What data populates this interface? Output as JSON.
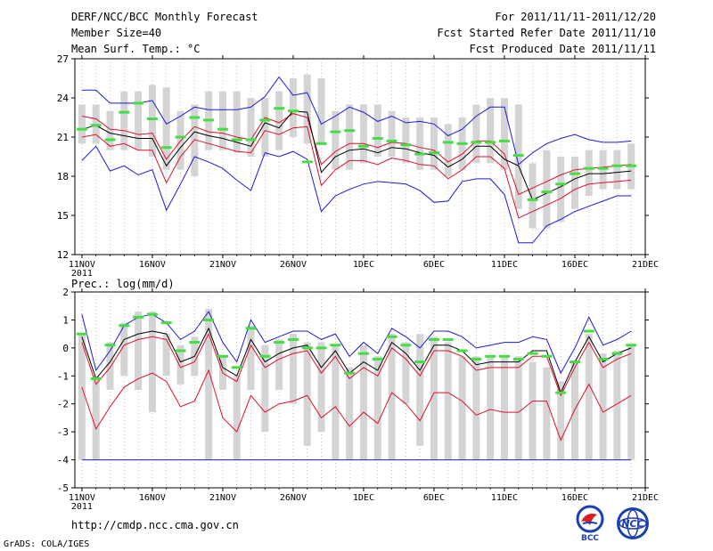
{
  "header": {
    "title": "DERF/NCC/BCC Monthly Forecast",
    "member_size": "Member Size=40",
    "variable": "Mean Surf. Temp.: °C",
    "period": "For 2011/11/11-2011/12/20",
    "started": "Fcst Started Refer Date 2011/11/10",
    "produced": "Fcst Produced Date 2011/11/11"
  },
  "footer": {
    "url": "http://cmdp.ncc.cma.gov.cn",
    "credit": "GrADS: COLA/IGES",
    "logo_left": "BCC",
    "logo_right": "NCC"
  },
  "colors": {
    "mean": "#000000",
    "red": "#e0102a",
    "blue": "#1a1adc",
    "green": "#44dd44",
    "bar": "#d4d4d4"
  },
  "chart_data": [
    {
      "type": "line",
      "title": "Mean Surf. Temp.: °C",
      "ylim": [
        12,
        27
      ],
      "yticks": [
        12,
        15,
        18,
        21,
        24,
        27
      ],
      "xticks": [
        {
          "day": 1,
          "label": "11NOV",
          "sub": "2011"
        },
        {
          "day": 6,
          "label": "16NOV"
        },
        {
          "day": 11,
          "label": "21NOV"
        },
        {
          "day": 16,
          "label": "26NOV"
        },
        {
          "day": 21,
          "label": "1DEC"
        },
        {
          "day": 26,
          "label": "6DEC"
        },
        {
          "day": 31,
          "label": "11DEC"
        },
        {
          "day": 36,
          "label": "16DEC"
        },
        {
          "day": 41,
          "label": "21DEC"
        }
      ],
      "x": [
        1,
        2,
        3,
        4,
        5,
        6,
        7,
        8,
        9,
        10,
        11,
        12,
        13,
        14,
        15,
        16,
        17,
        18,
        19,
        20,
        21,
        22,
        23,
        24,
        25,
        26,
        27,
        28,
        29,
        30,
        31,
        32,
        33,
        34,
        35,
        36,
        37,
        38,
        39,
        40
      ],
      "bars": {
        "low": [
          20.5,
          20.5,
          20.0,
          20.0,
          20.0,
          19.5,
          18.5,
          18.5,
          18.0,
          20.0,
          20.0,
          19.8,
          19.5,
          19.5,
          20.0,
          21.0,
          20.5,
          20.5,
          18.5,
          18.5,
          19.0,
          19.5,
          19.5,
          19.0,
          18.5,
          18.5,
          18.0,
          18.5,
          19.0,
          19.0,
          18.5,
          15.5,
          14.0,
          14.0,
          14.5,
          15.5,
          16.5,
          17.0,
          17.0,
          17.0
        ],
        "high": [
          23.5,
          23.5,
          23.0,
          24.5,
          24.5,
          25.0,
          24.8,
          23.0,
          23.5,
          24.5,
          24.5,
          24.5,
          24.0,
          24.0,
          24.5,
          25.5,
          25.8,
          25.5,
          23.0,
          23.5,
          23.5,
          23.5,
          23.0,
          22.5,
          22.5,
          22.5,
          22.0,
          22.5,
          23.5,
          24.0,
          24.0,
          23.5,
          19.0,
          20.0,
          19.5,
          19.5,
          20.0,
          20.0,
          20.0,
          20.5
        ]
      },
      "series": [
        {
          "name": "ensemble mean",
          "color": "#000000",
          "values": [
            21.6,
            21.9,
            21.3,
            21.1,
            20.9,
            20.9,
            18.8,
            20.2,
            21.4,
            21.1,
            20.9,
            20.6,
            20.3,
            22.1,
            21.7,
            23.0,
            22.9,
            18.3,
            19.5,
            20.0,
            20.1,
            19.8,
            20.2,
            20.1,
            19.8,
            19.6,
            18.7,
            19.3,
            20.3,
            20.3,
            19.3,
            18.8,
            16.2,
            16.7,
            17.2,
            17.8,
            18.2,
            18.2,
            18.3,
            18.4
          ]
        },
        {
          "name": "upper red",
          "color": "#e0102a",
          "values": [
            22.6,
            22.4,
            21.6,
            21.5,
            21.2,
            21.3,
            19.3,
            20.7,
            21.8,
            21.4,
            21.3,
            21.0,
            20.8,
            22.5,
            22.1,
            22.8,
            22.5,
            18.9,
            19.9,
            20.5,
            20.5,
            20.2,
            20.6,
            20.5,
            20.2,
            20.0,
            19.1,
            19.7,
            20.7,
            20.7,
            19.7,
            16.6,
            17.1,
            17.6,
            18.1,
            18.5,
            18.6,
            18.7,
            18.8,
            18.9
          ]
        },
        {
          "name": "lower red",
          "color": "#e0102a",
          "values": [
            21.0,
            21.2,
            20.3,
            20.5,
            20.0,
            20.0,
            17.5,
            19.5,
            20.8,
            20.5,
            20.2,
            19.9,
            19.8,
            21.5,
            21.2,
            21.7,
            21.8,
            17.3,
            18.5,
            19.2,
            19.2,
            18.9,
            19.4,
            19.2,
            18.9,
            18.8,
            17.8,
            18.5,
            19.5,
            19.5,
            18.6,
            14.8,
            15.3,
            15.8,
            16.3,
            17.0,
            17.4,
            17.5,
            17.6,
            17.7
          ]
        },
        {
          "name": "upper blue",
          "color": "#1a1adc",
          "values": [
            24.6,
            24.6,
            23.6,
            23.6,
            23.6,
            23.8,
            22.0,
            22.6,
            23.3,
            23.1,
            23.1,
            23.1,
            23.3,
            24.1,
            25.6,
            24.2,
            24.4,
            22.0,
            22.6,
            23.3,
            22.9,
            22.2,
            22.6,
            22.1,
            22.2,
            22.0,
            21.1,
            21.6,
            22.6,
            23.3,
            23.3,
            18.9,
            19.8,
            20.5,
            20.9,
            21.2,
            20.8,
            20.6,
            20.6,
            20.7
          ]
        },
        {
          "name": "lower blue",
          "color": "#1a1adc",
          "values": [
            19.2,
            20.3,
            18.4,
            18.8,
            18.1,
            18.5,
            15.4,
            17.4,
            19.5,
            19.1,
            18.6,
            17.7,
            16.9,
            19.8,
            19.5,
            19.9,
            19.3,
            15.3,
            16.5,
            17.0,
            17.4,
            17.6,
            17.5,
            17.4,
            16.9,
            16.0,
            16.1,
            17.6,
            17.8,
            17.8,
            16.6,
            12.9,
            12.9,
            14.2,
            14.7,
            15.3,
            15.7,
            16.1,
            16.5,
            16.5
          ]
        }
      ],
      "markers": {
        "name": "green",
        "values": [
          21.6,
          21.9,
          20.8,
          22.9,
          23.6,
          22.4,
          20.2,
          21.0,
          22.5,
          22.3,
          21.6,
          20.8,
          20.8,
          22.3,
          23.2,
          23.0,
          19.1,
          20.5,
          21.4,
          21.5,
          20.3,
          20.9,
          20.7,
          20.4,
          19.7,
          19.8,
          20.6,
          20.5,
          20.6,
          20.6,
          20.7,
          19.6,
          16.2,
          16.8,
          17.4,
          18.2,
          18.6,
          18.6,
          18.8,
          18.8
        ]
      }
    },
    {
      "type": "line",
      "title": "Prec.: log(mm/d)",
      "ylim": [
        -5,
        2
      ],
      "yticks": [
        -5,
        -4,
        -3,
        -2,
        -1,
        0,
        1,
        2
      ],
      "xticks": [
        {
          "day": 1,
          "label": "11NOV",
          "sub": "2011"
        },
        {
          "day": 6,
          "label": "16NOV"
        },
        {
          "day": 11,
          "label": "21NOV"
        },
        {
          "day": 16,
          "label": "26NOV"
        },
        {
          "day": 21,
          "label": "1DEC"
        },
        {
          "day": 26,
          "label": "6DEC"
        },
        {
          "day": 31,
          "label": "11DEC"
        },
        {
          "day": 36,
          "label": "16DEC"
        },
        {
          "day": 41,
          "label": "21DEC"
        }
      ],
      "x": [
        1,
        2,
        3,
        4,
        5,
        6,
        7,
        8,
        9,
        10,
        11,
        12,
        13,
        14,
        15,
        16,
        17,
        18,
        19,
        20,
        21,
        22,
        23,
        24,
        25,
        26,
        27,
        28,
        29,
        30,
        31,
        32,
        33,
        34,
        35,
        36,
        37,
        38,
        39,
        40
      ],
      "bars": {
        "low": [
          -4.0,
          -4.0,
          -1.5,
          -1.0,
          -1.5,
          -2.3,
          -1.0,
          -1.3,
          -1.0,
          -4.0,
          -1.5,
          -4.0,
          -1.5,
          -3.0,
          -1.5,
          -2.0,
          -3.5,
          -3.0,
          -4.0,
          -4.0,
          -4.0,
          -4.0,
          -4.0,
          -2.0,
          -3.5,
          -4.0,
          -4.0,
          -4.0,
          -4.0,
          -4.0,
          -4.0,
          -4.0,
          -4.0,
          -4.0,
          -4.0,
          -4.0,
          -4.0,
          -4.0,
          -4.0,
          -4.0
        ],
        "high": [
          0.5,
          -1.0,
          0.2,
          0.9,
          1.3,
          1.3,
          0.5,
          0.1,
          0.4,
          1.4,
          -0.3,
          -1.0,
          0.8,
          0.1,
          0.3,
          0.5,
          0.2,
          0.2,
          0.1,
          -0.7,
          0.1,
          -0.3,
          0.5,
          0.2,
          0.5,
          0.4,
          0.2,
          -0.3,
          -0.3,
          -0.3,
          -0.3,
          -0.3,
          -0.5,
          -0.7,
          -1.2,
          -0.5,
          0.5,
          -0.2,
          -0.1,
          0.1
        ]
      },
      "series": [
        {
          "name": "ensemble mean",
          "color": "#000000",
          "values": [
            0.4,
            -1.1,
            -0.5,
            0.3,
            0.5,
            0.6,
            0.5,
            -0.5,
            -0.3,
            0.7,
            -0.7,
            -1.0,
            0.3,
            -0.5,
            -0.2,
            0.0,
            0.1,
            -0.7,
            -0.1,
            -0.9,
            -0.5,
            -0.8,
            0.2,
            -0.2,
            -0.8,
            0.1,
            0.1,
            -0.1,
            -0.6,
            -0.5,
            -0.5,
            -0.5,
            -0.1,
            -0.1,
            -1.6,
            -0.5,
            0.4,
            -0.5,
            -0.2,
            0.0
          ]
        },
        {
          "name": "upper red",
          "color": "#e0102a",
          "values": [
            0.2,
            -1.3,
            -0.7,
            0.1,
            0.3,
            0.4,
            0.3,
            -0.7,
            -0.5,
            0.5,
            -0.9,
            -1.2,
            0.1,
            -0.7,
            -0.4,
            -0.2,
            -0.1,
            -0.9,
            -0.3,
            -1.1,
            -0.7,
            -1.0,
            0.0,
            -0.4,
            -1.0,
            -0.1,
            -0.1,
            -0.3,
            -0.8,
            -0.7,
            -0.7,
            -0.7,
            -0.3,
            -0.3,
            -1.7,
            -0.7,
            0.2,
            -0.7,
            -0.4,
            -0.2
          ]
        },
        {
          "name": "lower red",
          "color": "#e0102a",
          "values": [
            -1.4,
            -2.9,
            -2.1,
            -1.4,
            -1.1,
            -0.9,
            -1.2,
            -2.1,
            -1.9,
            -0.8,
            -2.5,
            -3.0,
            -1.7,
            -2.3,
            -2.0,
            -1.9,
            -1.7,
            -2.5,
            -2.1,
            -2.8,
            -2.3,
            -2.7,
            -1.6,
            -2.0,
            -2.6,
            -1.6,
            -1.6,
            -1.9,
            -2.4,
            -2.2,
            -2.3,
            -2.3,
            -1.9,
            -1.9,
            -3.3,
            -2.2,
            -1.3,
            -2.3,
            -2.0,
            -1.7
          ]
        },
        {
          "name": "upper blue",
          "color": "#1a1adc",
          "values": [
            1.2,
            -0.8,
            -0.1,
            0.8,
            1.1,
            1.2,
            0.9,
            0.3,
            0.6,
            1.3,
            0.2,
            -0.5,
            1.0,
            0.2,
            0.4,
            0.6,
            0.6,
            0.3,
            0.5,
            -0.3,
            0.2,
            -0.2,
            0.7,
            0.4,
            0.0,
            0.6,
            0.6,
            0.4,
            0.0,
            0.1,
            0.2,
            0.2,
            0.4,
            0.3,
            -0.9,
            0.0,
            1.1,
            0.1,
            0.3,
            0.6
          ]
        },
        {
          "name": "lower blue",
          "color": "#1a1adc",
          "values": [
            -4.0,
            -4.0,
            -4.0,
            -4.0,
            -4.0,
            -4.0,
            -4.0,
            -4.0,
            -4.0,
            -4.0,
            -4.0,
            -4.0,
            -4.0,
            -4.0,
            -4.0,
            -4.0,
            -4.0,
            -4.0,
            -4.0,
            -4.0,
            -4.0,
            -4.0,
            -4.0,
            -4.0,
            -4.0,
            -4.0,
            -4.0,
            -4.0,
            -4.0,
            -4.0,
            -4.0,
            -4.0,
            -4.0,
            -4.0,
            -4.0,
            -4.0,
            -4.0,
            -4.0,
            -4.0,
            -4.0
          ]
        }
      ],
      "markers": {
        "name": "green",
        "values": [
          0.5,
          -1.1,
          0.1,
          0.8,
          1.1,
          1.2,
          0.9,
          -0.1,
          0.2,
          1.0,
          -0.3,
          -0.7,
          0.7,
          -0.3,
          0.2,
          0.3,
          0.0,
          0.0,
          0.1,
          -0.9,
          -0.2,
          -0.4,
          0.4,
          0.1,
          -0.5,
          0.3,
          0.3,
          -0.1,
          -0.4,
          -0.3,
          -0.3,
          -0.4,
          -0.2,
          -0.3,
          -1.6,
          -0.5,
          0.6,
          -0.4,
          -0.2,
          0.1
        ]
      }
    }
  ]
}
